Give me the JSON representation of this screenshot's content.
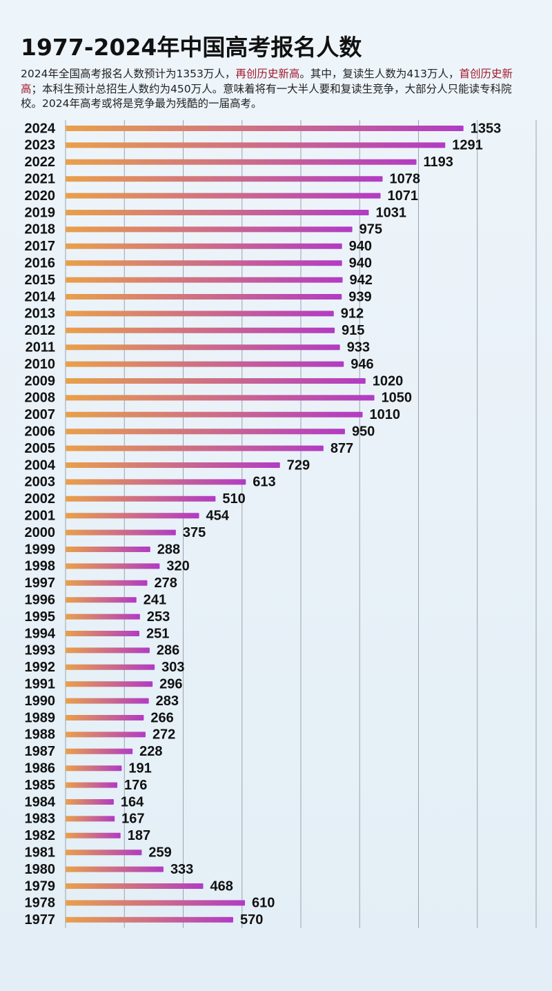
{
  "chart_data": {
    "type": "barh",
    "title": "1977-2024年中国高考报名人数",
    "subtitle": [
      {
        "text": "2024年全国高考报名人数预计为1353万人，",
        "color": "#222222"
      },
      {
        "text": "再创历史新高",
        "color": "#a0192a"
      },
      {
        "text": "。其中，复读生人数为413万人，",
        "color": "#222222"
      },
      {
        "text": "首创历史新高",
        "color": "#a0192a"
      },
      {
        "text": "；本科生预计总招生人数约为450万人。意味着将有一大半人要和复读生竞争，大部分人只能读专科院校。2024年高考或将是竞争最为残酷的一届高考。",
        "color": "#222222"
      }
    ],
    "categories": [
      "2024",
      "2023",
      "2022",
      "2021",
      "2020",
      "2019",
      "2018",
      "2017",
      "2016",
      "2015",
      "2014",
      "2013",
      "2012",
      "2011",
      "2010",
      "2009",
      "2008",
      "2007",
      "2006",
      "2005",
      "2004",
      "2003",
      "2002",
      "2001",
      "2000",
      "1999",
      "1998",
      "1997",
      "1996",
      "1995",
      "1994",
      "1993",
      "1992",
      "1991",
      "1990",
      "1989",
      "1988",
      "1987",
      "1986",
      "1985",
      "1984",
      "1983",
      "1982",
      "1981",
      "1980",
      "1979",
      "1978",
      "1977"
    ],
    "values": [
      1353,
      1291,
      1193,
      1078,
      1071,
      1031,
      975,
      940,
      940,
      942,
      939,
      912,
      915,
      933,
      946,
      1020,
      1050,
      1010,
      950,
      877,
      729,
      613,
      510,
      454,
      375,
      288,
      320,
      278,
      241,
      253,
      251,
      286,
      303,
      296,
      283,
      266,
      272,
      228,
      191,
      176,
      164,
      167,
      187,
      259,
      333,
      468,
      610,
      570
    ],
    "colors": [
      "#e9a04a",
      "#b23bc4"
    ],
    "xlim": [
      0,
      1600
    ],
    "xticks": [
      0,
      200,
      400,
      600,
      800,
      1000,
      1200,
      1400,
      1600
    ],
    "grid": true
  }
}
